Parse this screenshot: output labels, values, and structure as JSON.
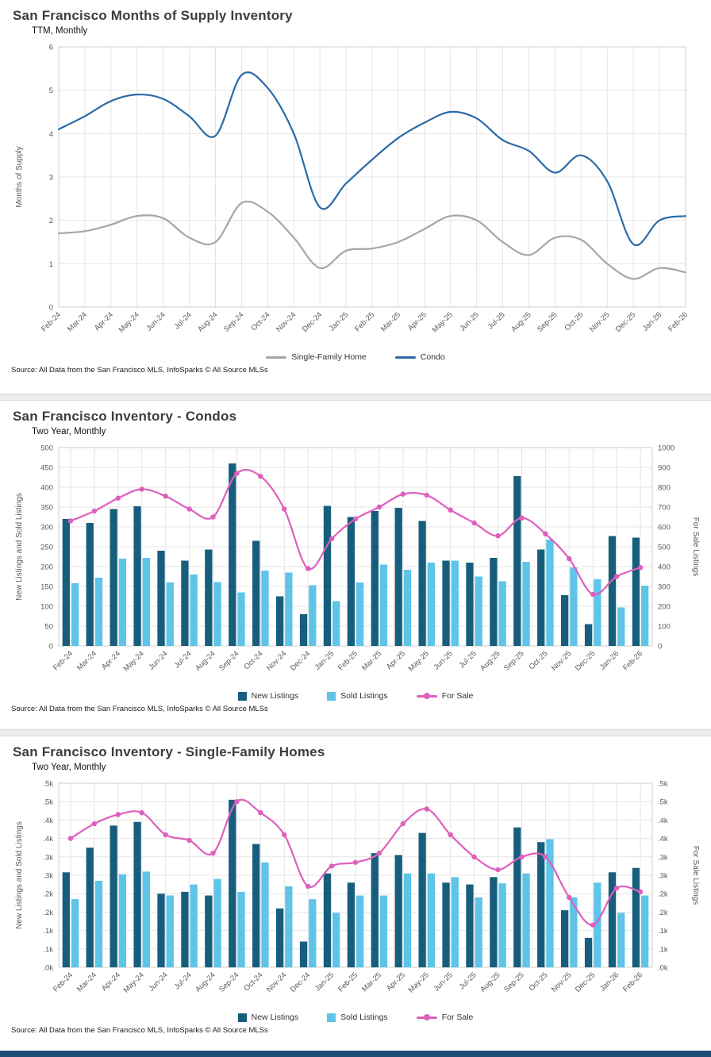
{
  "page": {
    "bottom_bar_color": "#1f4e79",
    "background": "#ffffff"
  },
  "source_note": "Source: All Data from the San Francisco MLS, InfoSparks © All Source MLSs",
  "chart_data": [
    {
      "type": "line",
      "title": "San Francisco Months of Supply Inventory",
      "subtitle": "TTM, Monthly",
      "ylabel_left": "Months of Supply",
      "ylim_left": [
        0,
        6
      ],
      "ytick_step_left": 1,
      "grid": true,
      "legend_position": "bottom",
      "x": [
        "Feb-24",
        "Mar-24",
        "Apr-24",
        "May-24",
        "Jun-24",
        "Jul-24",
        "Aug-24",
        "Sep-24",
        "Oct-24",
        "Nov-24",
        "Dec-24",
        "Jan-25",
        "Feb-25",
        "Mar-25",
        "Apr-25",
        "May-25",
        "Jun-25",
        "Jul-25",
        "Aug-25",
        "Sep-25",
        "Oct-25",
        "Nov-25",
        "Dec-25",
        "Jan-26",
        "Feb-26"
      ],
      "series": [
        {
          "name": "Single-Family Home",
          "type": "line",
          "axis": "left",
          "color": "#a6a6a6",
          "values": [
            1.7,
            1.75,
            1.9,
            2.1,
            2.05,
            1.6,
            1.5,
            2.4,
            2.2,
            1.6,
            0.9,
            1.3,
            1.35,
            1.5,
            1.8,
            2.1,
            2.0,
            1.5,
            1.2,
            1.6,
            1.55,
            1.0,
            0.65,
            0.9,
            0.8
          ]
        },
        {
          "name": "Condo",
          "type": "line",
          "axis": "left",
          "color": "#2b6ba8",
          "values": [
            4.1,
            4.4,
            4.75,
            4.9,
            4.8,
            4.4,
            3.95,
            5.35,
            5.05,
            4.0,
            2.3,
            2.85,
            3.4,
            3.9,
            4.25,
            4.5,
            4.35,
            3.85,
            3.6,
            3.1,
            3.5,
            2.9,
            1.45,
            2.0,
            2.1
          ]
        }
      ]
    },
    {
      "type": "bar",
      "title": "San Francisco Inventory - Condos",
      "subtitle": "Two Year, Monthly",
      "ylabel_left": "New Listings and Sold Listings",
      "ylabel_right": "For Sale Listings",
      "ylim_left": [
        0,
        500
      ],
      "ytick_step_left": 50,
      "ylim_right": [
        0,
        1000
      ],
      "ytick_step_right": 100,
      "grid": true,
      "legend_position": "bottom",
      "x": [
        "Feb-24",
        "Mar-24",
        "Apr-24",
        "May-24",
        "Jun-24",
        "Jul-24",
        "Aug-24",
        "Sep-24",
        "Oct-24",
        "Nov-24",
        "Dec-24",
        "Jan-25",
        "Feb-25",
        "Mar-25",
        "Apr-25",
        "May-25",
        "Jun-25",
        "Jul-25",
        "Aug-25",
        "Sep-25",
        "Oct-25",
        "Nov-25",
        "Dec-25",
        "Jan-26",
        "Feb-26"
      ],
      "series": [
        {
          "name": "New Listings",
          "type": "bar",
          "axis": "left",
          "color": "#175e7c",
          "values": [
            320,
            310,
            345,
            352,
            240,
            215,
            243,
            460,
            265,
            125,
            80,
            353,
            325,
            340,
            348,
            315,
            215,
            210,
            222,
            428,
            243,
            128,
            55,
            277,
            273
          ]
        },
        {
          "name": "Sold Listings",
          "type": "bar",
          "axis": "left",
          "color": "#5ec4e8",
          "values": [
            158,
            172,
            220,
            222,
            160,
            180,
            161,
            135,
            190,
            185,
            153,
            113,
            160,
            205,
            192,
            210,
            215,
            175,
            163,
            212,
            268,
            198,
            168,
            97,
            152
          ]
        },
        {
          "name": "For Sale",
          "type": "line",
          "axis": "right",
          "color": "#de5fbd",
          "markers": true,
          "values": [
            630,
            680,
            745,
            790,
            755,
            690,
            650,
            870,
            855,
            690,
            390,
            540,
            640,
            700,
            765,
            760,
            685,
            620,
            555,
            645,
            565,
            440,
            260,
            350,
            395
          ]
        }
      ]
    },
    {
      "type": "bar",
      "title": "San Francisco Inventory - Single-Family Homes",
      "subtitle": "Two Year, Monthly",
      "ylabel_left": "New Listings and Sold Listings",
      "ylabel_right": "For Sale Listings",
      "ylim_left": [
        0,
        500
      ],
      "ytick_step_left": 50,
      "ytick_labels_left": [
        ".0k",
        ".1k",
        ".1k",
        ".2k",
        ".2k",
        ".3k",
        ".3k",
        ".4k",
        ".4k",
        ".5k",
        ".5k"
      ],
      "ylim_right": [
        0,
        500
      ],
      "ytick_step_right": 50,
      "ytick_labels_right": [
        ".0k",
        ".1k",
        ".1k",
        ".2k",
        ".2k",
        ".3k",
        ".3k",
        ".4k",
        ".4k",
        ".5k",
        ".5k"
      ],
      "grid": true,
      "legend_position": "bottom",
      "x": [
        "Feb-24",
        "Mar-24",
        "Apr-24",
        "May-24",
        "Jun-24",
        "Jul-24",
        "Aug-24",
        "Sep-24",
        "Oct-24",
        "Nov-24",
        "Dec-24",
        "Jan-25",
        "Feb-25",
        "Mar-25",
        "Apr-25",
        "May-25",
        "Jun-25",
        "Jul-25",
        "Aug-25",
        "Sep-25",
        "Oct-25",
        "Nov-25",
        "Dec-25",
        "Jan-26",
        "Feb-26"
      ],
      "series": [
        {
          "name": "New Listings",
          "type": "bar",
          "axis": "left",
          "color": "#175e7c",
          "values": [
            258,
            325,
            385,
            395,
            200,
            205,
            195,
            455,
            335,
            160,
            70,
            255,
            230,
            310,
            305,
            365,
            230,
            225,
            245,
            380,
            340,
            155,
            80,
            258,
            270
          ]
        },
        {
          "name": "Sold Listings",
          "type": "bar",
          "axis": "left",
          "color": "#5ec4e8",
          "values": [
            185,
            235,
            253,
            260,
            195,
            225,
            240,
            205,
            285,
            220,
            185,
            148,
            195,
            195,
            255,
            255,
            245,
            190,
            228,
            255,
            348,
            190,
            230,
            148,
            195
          ]
        },
        {
          "name": "For Sale",
          "type": "line",
          "axis": "right",
          "color": "#de5fbd",
          "markers": true,
          "values": [
            350,
            390,
            415,
            420,
            360,
            345,
            310,
            450,
            420,
            360,
            220,
            275,
            285,
            310,
            390,
            430,
            360,
            300,
            265,
            300,
            300,
            190,
            115,
            215,
            205
          ]
        }
      ]
    }
  ]
}
